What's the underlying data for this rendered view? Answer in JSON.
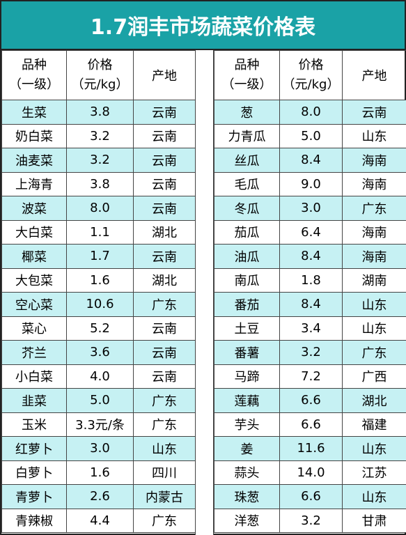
{
  "title": "1.7润丰市场蔬菜价格表",
  "header": {
    "variety_line1": "品种",
    "variety_line2": "（一级）",
    "price_line1": "价格",
    "price_line2": "（元/kg）",
    "origin": "产地"
  },
  "left_rows": [
    {
      "name": "生菜",
      "price": "3.8",
      "origin": "云南"
    },
    {
      "name": "奶白菜",
      "price": "3.2",
      "origin": "云南"
    },
    {
      "name": "油麦菜",
      "price": "3.2",
      "origin": "云南"
    },
    {
      "name": "上海青",
      "price": "3.8",
      "origin": "云南"
    },
    {
      "name": "波菜",
      "price": "8.0",
      "origin": "云南"
    },
    {
      "name": "大白菜",
      "price": "1.1",
      "origin": "湖北"
    },
    {
      "name": "椰菜",
      "price": "1.7",
      "origin": "云南"
    },
    {
      "name": "大包菜",
      "price": "1.6",
      "origin": "湖北"
    },
    {
      "name": "空心菜",
      "price": "10.6",
      "origin": "广东"
    },
    {
      "name": "菜心",
      "price": "5.2",
      "origin": "云南"
    },
    {
      "name": "芥兰",
      "price": "3.6",
      "origin": "云南"
    },
    {
      "name": "小白菜",
      "price": "4.0",
      "origin": "云南"
    },
    {
      "name": "韭菜",
      "price": "5.0",
      "origin": "广东"
    },
    {
      "name": "玉米",
      "price": "3.3元/条",
      "origin": "广东"
    },
    {
      "name": "红萝卜",
      "price": "3.0",
      "origin": "山东"
    },
    {
      "name": "白萝卜",
      "price": "1.6",
      "origin": "四川"
    },
    {
      "name": "青萝卜",
      "price": "2.6",
      "origin": "内蒙古"
    },
    {
      "name": "青辣椒",
      "price": "4.4",
      "origin": "广东"
    }
  ],
  "right_rows": [
    {
      "name": "葱",
      "price": "8.0",
      "origin": "云南"
    },
    {
      "name": "力青瓜",
      "price": "5.0",
      "origin": "山东"
    },
    {
      "name": "丝瓜",
      "price": "8.4",
      "origin": "海南"
    },
    {
      "name": "毛瓜",
      "price": "9.0",
      "origin": "海南"
    },
    {
      "name": "冬瓜",
      "price": "3.0",
      "origin": "广东"
    },
    {
      "name": "茄瓜",
      "price": "6.4",
      "origin": "海南"
    },
    {
      "name": "油瓜",
      "price": "8.4",
      "origin": "海南"
    },
    {
      "name": "南瓜",
      "price": "1.8",
      "origin": "湖南"
    },
    {
      "name": "番茄",
      "price": "8.4",
      "origin": "山东"
    },
    {
      "name": "土豆",
      "price": "3.4",
      "origin": "山东"
    },
    {
      "name": "番薯",
      "price": "3.2",
      "origin": "广东"
    },
    {
      "name": "马蹄",
      "price": "7.2",
      "origin": "广西"
    },
    {
      "name": "莲藕",
      "price": "6.6",
      "origin": "湖北"
    },
    {
      "name": "芋头",
      "price": "6.6",
      "origin": "福建"
    },
    {
      "name": "姜",
      "price": "11.6",
      "origin": "山东"
    },
    {
      "name": "蒜头",
      "price": "14.0",
      "origin": "江苏"
    },
    {
      "name": "珠葱",
      "price": "6.6",
      "origin": "山东"
    },
    {
      "name": "洋葱",
      "price": "3.2",
      "origin": "甘肃"
    }
  ],
  "colors": {
    "title_bg": "#1aa2a6",
    "alt_row_bg": "#c6f1f3"
  }
}
